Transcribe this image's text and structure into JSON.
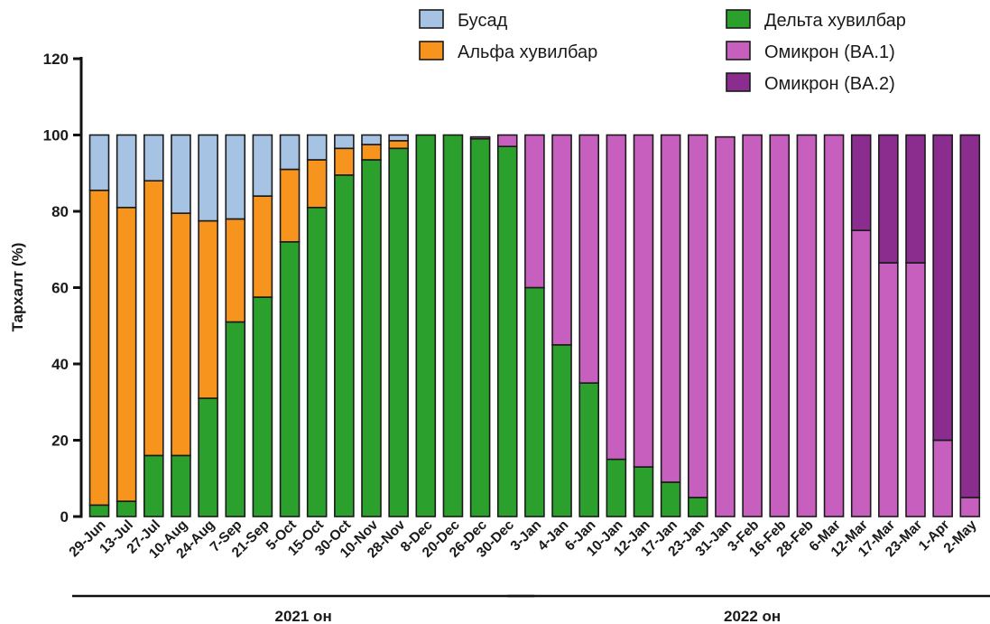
{
  "chart_data": {
    "type": "bar",
    "stacked": true,
    "ylabel": "Тархалт (%)",
    "ylim": [
      0,
      120
    ],
    "yticks": [
      0,
      20,
      40,
      60,
      80,
      100,
      120
    ],
    "categories": [
      "29-Jun",
      "13-Jul",
      "27-Jul",
      "10-Aug",
      "24-Aug",
      "7-Sep",
      "21-Sep",
      "5-Oct",
      "15-Oct",
      "30-Oct",
      "10-Nov",
      "28-Nov",
      "8-Dec",
      "20-Dec",
      "26-Dec",
      "30-Dec",
      "3-Jan",
      "4-Jan",
      "6-Jan",
      "10-Jan",
      "12-Jan",
      "17-Jan",
      "23-Jan",
      "31-Jan",
      "3-Feb",
      "16-Feb",
      "28-Feb",
      "6-Mar",
      "12-Mar",
      "17-Mar",
      "23-Mar",
      "1-Apr",
      "2-May"
    ],
    "series": [
      {
        "name": "Дельта хувилбар",
        "color": "#2ca02c",
        "values": [
          3,
          4,
          16,
          16,
          31,
          51,
          57.5,
          72,
          81,
          89.5,
          93.5,
          96.5,
          100,
          100,
          99,
          97,
          60,
          45,
          35,
          15,
          13,
          9,
          5,
          0,
          0,
          0,
          0,
          0,
          0,
          0,
          0,
          0,
          0
        ]
      },
      {
        "name": "Альфа хувилбар",
        "color": "#f7941d",
        "values": [
          82.5,
          77,
          72,
          63.5,
          46.5,
          27,
          26.5,
          19,
          12.5,
          7,
          4,
          2,
          0,
          0,
          0,
          0,
          0,
          0,
          0,
          0,
          0,
          0,
          0,
          0,
          0,
          0,
          0,
          0,
          0,
          0,
          0,
          0,
          0
        ]
      },
      {
        "name": "Бусад",
        "color": "#a7c3e4",
        "values": [
          14.5,
          19,
          12,
          20.5,
          22.5,
          22,
          16,
          9,
          6.5,
          3.5,
          2.5,
          1.5,
          0,
          0,
          0,
          0,
          0,
          0,
          0,
          0,
          0,
          0,
          0,
          0,
          0,
          0,
          0,
          0,
          0,
          0,
          0,
          0,
          0
        ]
      },
      {
        "name": "Омикрон (BA.1)",
        "color": "#c65fbd",
        "values": [
          0,
          0,
          0,
          0,
          0,
          0,
          0,
          0,
          0,
          0,
          0,
          0,
          0,
          0,
          0.5,
          3,
          40,
          55,
          65,
          85,
          87,
          91,
          95,
          99.5,
          100,
          100,
          100,
          100,
          75,
          66.5,
          66.5,
          20,
          5
        ]
      },
      {
        "name": "Омикрон (BA.2)",
        "color": "#8b2c8f",
        "values": [
          0,
          0,
          0,
          0,
          0,
          0,
          0,
          0,
          0,
          0,
          0,
          0,
          0,
          0,
          0,
          0,
          0,
          0,
          0,
          0,
          0,
          0,
          0,
          0,
          0,
          0,
          0,
          0,
          25,
          33.5,
          33.5,
          80,
          95
        ]
      }
    ],
    "legend": [
      {
        "series": 2,
        "label": "Бусад"
      },
      {
        "series": 1,
        "label": "Альфа хувилбар"
      },
      {
        "series": 0,
        "label": "Дельта хувилбар"
      },
      {
        "series": 3,
        "label": "Омикрон (BA.1)"
      },
      {
        "series": 4,
        "label": "Омикрон (BA.2)"
      }
    ],
    "legend_position": "top-right",
    "periods": [
      {
        "label": "2021 он",
        "from": 0,
        "to": 15
      },
      {
        "label": "2022 он",
        "from": 16,
        "to": 32
      }
    ]
  }
}
